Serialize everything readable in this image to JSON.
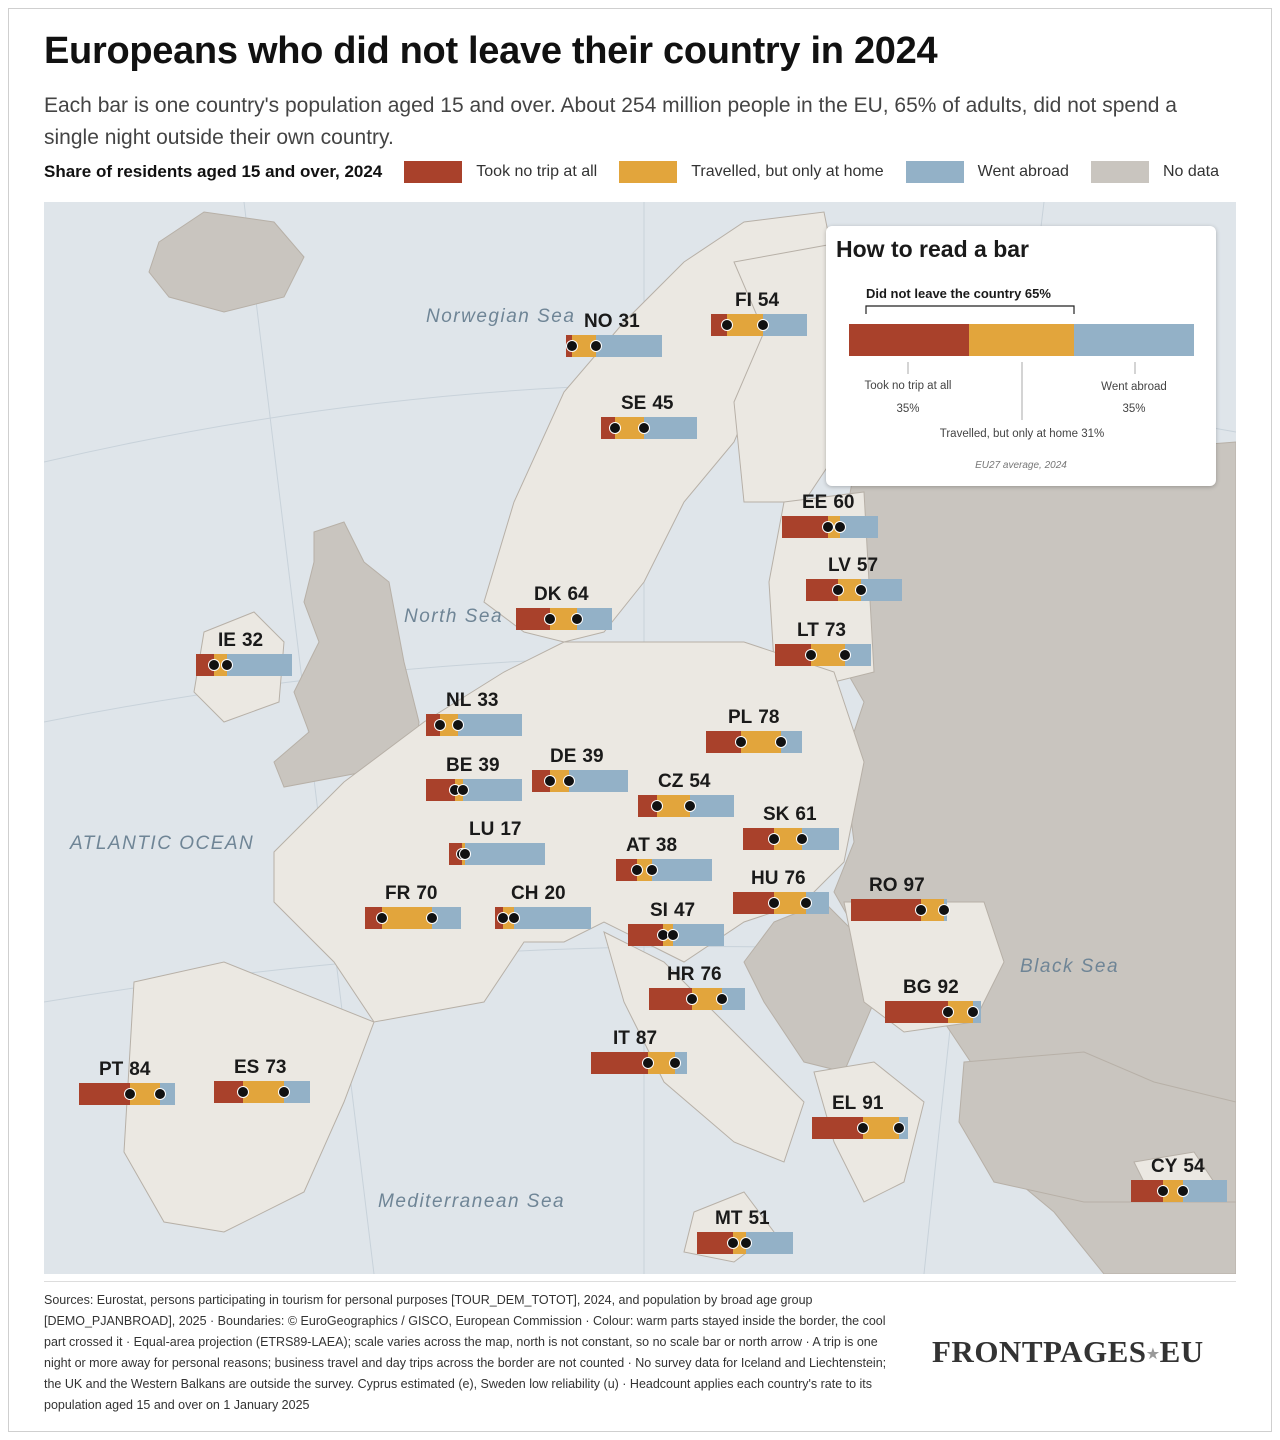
{
  "title": "Europeans who did not leave their country in 2024",
  "subtitle": "Each bar is one country's population aged 15 and over. About 254 million people in the EU, 65% of adults, did not spend a single night outside their own country.",
  "legend": {
    "lead": "Share of residents aged 15 and over, 2024",
    "items": [
      {
        "label": "Took no trip at all",
        "color": "#a9412b"
      },
      {
        "label": "Travelled, but only at home",
        "color": "#e2a53c"
      },
      {
        "label": "Went abroad",
        "color": "#93b1c7"
      },
      {
        "label": "No data",
        "color": "#c9c5bf"
      }
    ]
  },
  "colors": {
    "sea": "#dfe5ea",
    "land": "#ebe8e2",
    "outside": "#c9c5bf",
    "border": "#b7b0a7"
  },
  "seas": {
    "norwegian": "Norwegian Sea",
    "north": "North Sea",
    "atlantic": "ATLANTIC OCEAN",
    "black": "Black Sea",
    "med": "Mediterranean Sea"
  },
  "countries": [
    {
      "code": "NO",
      "not_left": 31,
      "no_trip": 6,
      "domestic": 25
    },
    {
      "code": "FI",
      "not_left": 54,
      "no_trip": 17,
      "domestic": 37
    },
    {
      "code": "SE",
      "not_left": 45,
      "no_trip": 15,
      "domestic": 30
    },
    {
      "code": "EE",
      "not_left": 60,
      "no_trip": 48,
      "domestic": 12
    },
    {
      "code": "LV",
      "not_left": 57,
      "no_trip": 33,
      "domestic": 24
    },
    {
      "code": "LT",
      "not_left": 73,
      "no_trip": 37,
      "domestic": 36
    },
    {
      "code": "DK",
      "not_left": 64,
      "no_trip": 35,
      "domestic": 29
    },
    {
      "code": "IE",
      "not_left": 32,
      "no_trip": 19,
      "domestic": 13
    },
    {
      "code": "NL",
      "not_left": 33,
      "no_trip": 15,
      "domestic": 18
    },
    {
      "code": "PL",
      "not_left": 78,
      "no_trip": 36,
      "domestic": 42
    },
    {
      "code": "DE",
      "not_left": 39,
      "no_trip": 19,
      "domestic": 20
    },
    {
      "code": "BE",
      "not_left": 39,
      "no_trip": 30,
      "domestic": 9
    },
    {
      "code": "CZ",
      "not_left": 54,
      "no_trip": 20,
      "domestic": 34
    },
    {
      "code": "SK",
      "not_left": 61,
      "no_trip": 32,
      "domestic": 29
    },
    {
      "code": "LU",
      "not_left": 17,
      "no_trip": 14,
      "domestic": 3
    },
    {
      "code": "AT",
      "not_left": 38,
      "no_trip": 22,
      "domestic": 16
    },
    {
      "code": "HU",
      "not_left": 76,
      "no_trip": 43,
      "domestic": 33
    },
    {
      "code": "RO",
      "not_left": 97,
      "no_trip": 73,
      "domestic": 24
    },
    {
      "code": "FR",
      "not_left": 70,
      "no_trip": 18,
      "domestic": 52
    },
    {
      "code": "CH",
      "not_left": 20,
      "no_trip": 8,
      "domestic": 12
    },
    {
      "code": "SI",
      "not_left": 47,
      "no_trip": 36,
      "domestic": 11
    },
    {
      "code": "HR",
      "not_left": 76,
      "no_trip": 45,
      "domestic": 31
    },
    {
      "code": "BG",
      "not_left": 92,
      "no_trip": 66,
      "domestic": 26
    },
    {
      "code": "IT",
      "not_left": 87,
      "no_trip": 59,
      "domestic": 28
    },
    {
      "code": "PT",
      "not_left": 84,
      "no_trip": 53,
      "domestic": 31
    },
    {
      "code": "ES",
      "not_left": 73,
      "no_trip": 30,
      "domestic": 43
    },
    {
      "code": "EL",
      "not_left": 91,
      "no_trip": 53,
      "domestic": 38
    },
    {
      "code": "CY",
      "not_left": 54,
      "no_trip": 33,
      "domestic": 21
    },
    {
      "code": "MT",
      "not_left": 51,
      "no_trip": 38,
      "domestic": 13
    }
  ],
  "howto": {
    "title": "How to read a bar",
    "bracket_label": "Did not leave the country  65%",
    "no_trip_label": "Took no trip at all",
    "no_trip_value": "35%",
    "abroad_label": "Went abroad",
    "abroad_value": "35%",
    "domestic_label": "Travelled, but only at home  31%",
    "note": "EU27 average, 2024",
    "no_trip": 35,
    "domestic": 31,
    "abroad": 35
  },
  "sources": "Sources: Eurostat, persons participating in tourism for personal purposes [TOUR_DEM_TOTOT], 2024, and population by broad age group [DEMO_PJANBROAD], 2025 · Boundaries: © EuroGeographics / GISCO, European Commission · Colour: warm parts stayed inside the border, the cool part crossed it · Equal-area projection (ETRS89-LAEA); scale varies across the map, north is not constant, so no scale bar or north arrow · A trip is one night or more away for personal reasons; business travel and day trips across the border are not counted · No survey data for Iceland and Liechtenstein; the UK and the Western Balkans are outside the survey. Cyprus estimated (e), Sweden low reliability (u) · Headcount applies each country's rate to its population aged 15 and over on 1 January 2025",
  "brand": {
    "name": "FRONTPAGES",
    "star": "★",
    "tld": "EU"
  }
}
